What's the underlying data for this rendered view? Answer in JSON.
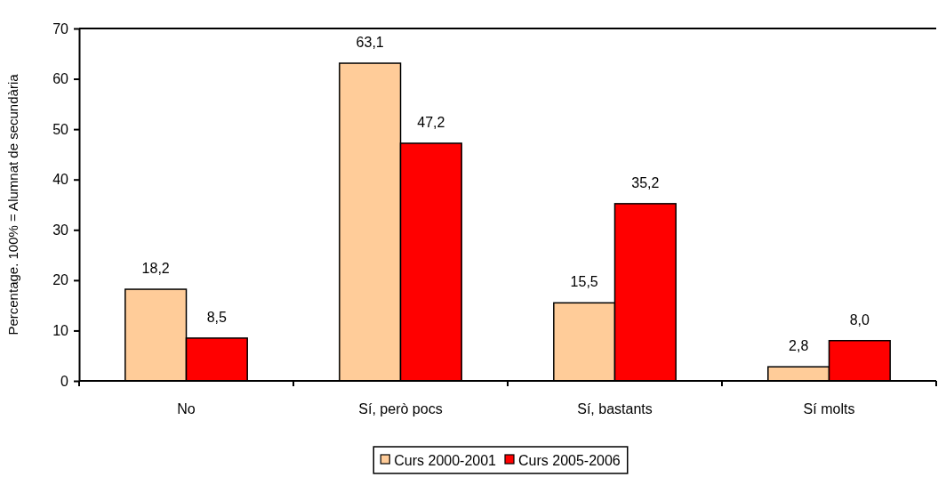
{
  "chart_data": {
    "type": "bar",
    "ylabel": "Percentage. 100% = Alumnat de secundària",
    "categories": [
      "No",
      "Sí, però pocs",
      "Sí, bastants",
      "Sí molts"
    ],
    "series": [
      {
        "name": "Curs 2000-2001",
        "color": "#ffcc99",
        "values": [
          18.2,
          63.1,
          15.5,
          2.8
        ],
        "value_labels": [
          "18,2",
          "63,1",
          "15,5",
          "2,8"
        ]
      },
      {
        "name": "Curs 2005-2006",
        "color": "#ff0000",
        "values": [
          8.5,
          47.2,
          35.2,
          8.0
        ],
        "value_labels": [
          "8,5",
          "47,2",
          "35,2",
          "8,0"
        ]
      }
    ],
    "ylim": [
      0,
      70
    ],
    "yticks": [
      0,
      10,
      20,
      30,
      40,
      50,
      60,
      70
    ],
    "legend": "bottom"
  }
}
